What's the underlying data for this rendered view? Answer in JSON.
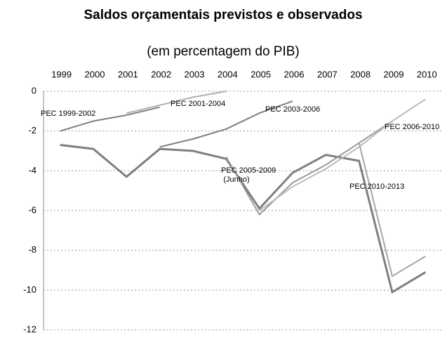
{
  "chart_data": {
    "type": "line",
    "title": "Saldos orçamentais previstos e observados",
    "subtitle": "(em percentagem do PIB)",
    "x": [
      1999,
      2000,
      2001,
      2002,
      2003,
      2004,
      2005,
      2006,
      2007,
      2008,
      2009,
      2010
    ],
    "ylim": [
      -12,
      0
    ],
    "yticks": [
      -12,
      -10,
      -8,
      -6,
      -4,
      -2,
      0
    ],
    "grid": true,
    "annotations": [
      "(Junho)"
    ],
    "series": [
      {
        "color": "#7f7f7f",
        "values": [
          -2.7,
          -2.9,
          -4.3,
          -2.9,
          -3.0,
          -3.4,
          -5.9,
          -4.1,
          -3.2,
          -3.5,
          -10.1,
          -9.1
        ]
      },
      {
        "name": "PEC 1999-2002",
        "color": "#7f7f7f",
        "values": [
          -2.0,
          -1.5,
          -1.2,
          -0.8,
          null,
          null,
          null,
          null,
          null,
          null,
          null,
          null
        ]
      },
      {
        "name": "PEC 2001-2004",
        "color": "#b0b0b0",
        "values": [
          null,
          null,
          -1.1,
          -0.7,
          -0.3,
          0.0,
          null,
          null,
          null,
          null,
          null,
          null
        ]
      },
      {
        "name": "PEC 2003-2006",
        "color": "#7f7f7f",
        "values": [
          null,
          null,
          null,
          -2.8,
          -2.4,
          -1.9,
          -1.1,
          -0.5,
          null,
          null,
          null,
          null
        ]
      },
      {
        "name": "PEC 2005-2009",
        "color": "#999999",
        "values": [
          null,
          null,
          null,
          null,
          null,
          -3.3,
          -6.2,
          -4.6,
          -3.7,
          -2.6,
          -1.5,
          null
        ]
      },
      {
        "name": "PEC 2006-2010",
        "color": "#bcbcbc",
        "values": [
          null,
          null,
          null,
          null,
          null,
          null,
          -6.0,
          -4.8,
          -3.9,
          -2.8,
          -1.5,
          -0.4
        ]
      },
      {
        "name": "PEC 2010-2013",
        "color": "#a6a6a6",
        "values": [
          null,
          null,
          null,
          null,
          null,
          null,
          null,
          null,
          null,
          -2.6,
          -9.3,
          -8.3
        ]
      }
    ]
  }
}
